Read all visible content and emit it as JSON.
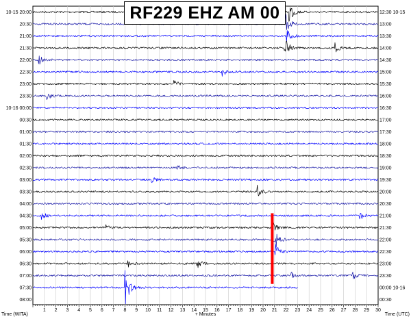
{
  "chart_data": {
    "type": "line",
    "title": "RF229 EHZ AM 00",
    "xlabel": "+ Minutes",
    "left_axis_label": "Time (WITA)",
    "right_axis_label": "Time (UTC)",
    "xlim": [
      0,
      30
    ],
    "x_ticks": [
      "1",
      "2",
      "3",
      "4",
      "5",
      "6",
      "7",
      "8",
      "9",
      "10",
      "11",
      "12",
      "13",
      "14",
      "15",
      "16",
      "17",
      "18",
      "19",
      "20",
      "21",
      "22",
      "23",
      "24",
      "25",
      "26",
      "27",
      "28",
      "29",
      "30"
    ],
    "grid": true,
    "trace_colors": [
      "#000000",
      "#1a1aa8",
      "#0000ff"
    ],
    "rows": [
      {
        "left": "10-15 20:00",
        "right": "12:30 10-15"
      },
      {
        "left": "20:30",
        "right": "13:00"
      },
      {
        "left": "21:00",
        "right": "13:30"
      },
      {
        "left": "21:30",
        "right": "14:00"
      },
      {
        "left": "22:00",
        "right": "14:30"
      },
      {
        "left": "22:30",
        "right": "15:00"
      },
      {
        "left": "23:00",
        "right": "15:30"
      },
      {
        "left": "23:30",
        "right": "16:00"
      },
      {
        "left": "10-16 00:00",
        "right": "16:30"
      },
      {
        "left": "00:30",
        "right": "17:00"
      },
      {
        "left": "01:00",
        "right": "17:30"
      },
      {
        "left": "01:30",
        "right": "18:00"
      },
      {
        "left": "02:00",
        "right": "18:30"
      },
      {
        "left": "02:30",
        "right": "19:00"
      },
      {
        "left": "03:00",
        "right": "19:30"
      },
      {
        "left": "03:30",
        "right": "20:00"
      },
      {
        "left": "04:00",
        "right": "20:30"
      },
      {
        "left": "04:30",
        "right": "21:00"
      },
      {
        "left": "05:00",
        "right": "21:30"
      },
      {
        "left": "05:30",
        "right": "22:00"
      },
      {
        "left": "06:00",
        "right": "22:30"
      },
      {
        "left": "06:30",
        "right": "23:00"
      },
      {
        "left": "07:00",
        "right": "23:30"
      },
      {
        "left": "07:30",
        "right": "00:00 10-16"
      },
      {
        "left": "08:00",
        "right": "00:30"
      }
    ],
    "data_end": {
      "row": 23,
      "minute": 23
    },
    "events": [
      {
        "row": 0,
        "minute": 22.3,
        "amp": 18
      },
      {
        "row": 1,
        "minute": 22.0,
        "amp": 14
      },
      {
        "row": 2,
        "minute": 22.1,
        "amp": 10
      },
      {
        "row": 3,
        "minute": 21.9,
        "amp": 16
      },
      {
        "row": 3,
        "minute": 26.3,
        "amp": 7
      },
      {
        "row": 4,
        "minute": 0.5,
        "amp": 7
      },
      {
        "row": 5,
        "minute": 16.5,
        "amp": 6
      },
      {
        "row": 6,
        "minute": 12.3,
        "amp": 4
      },
      {
        "row": 7,
        "minute": 1.2,
        "amp": 6
      },
      {
        "row": 13,
        "minute": 12.5,
        "amp": 4
      },
      {
        "row": 14,
        "minute": 10.3,
        "amp": 4
      },
      {
        "row": 15,
        "minute": 19.5,
        "amp": 10
      },
      {
        "row": 17,
        "minute": 0.8,
        "amp": 5
      },
      {
        "row": 17,
        "minute": 28.4,
        "amp": 6
      },
      {
        "row": 18,
        "minute": 6.3,
        "amp": 4
      },
      {
        "row": 18,
        "minute": 20.8,
        "amp": 10
      },
      {
        "row": 19,
        "minute": 20.9,
        "amp": 24
      },
      {
        "row": 20,
        "minute": 21.1,
        "amp": 10
      },
      {
        "row": 21,
        "minute": 8.2,
        "amp": 7
      },
      {
        "row": 21,
        "minute": 14.3,
        "amp": 6
      },
      {
        "row": 22,
        "minute": 22.5,
        "amp": 5
      },
      {
        "row": 22,
        "minute": 27.8,
        "amp": 5
      },
      {
        "row": 23,
        "minute": 8.0,
        "amp": 30
      }
    ],
    "marker": {
      "minute": 20.8,
      "row_start": 16.8,
      "row_end": 22.7,
      "color": "#ff0000"
    }
  }
}
